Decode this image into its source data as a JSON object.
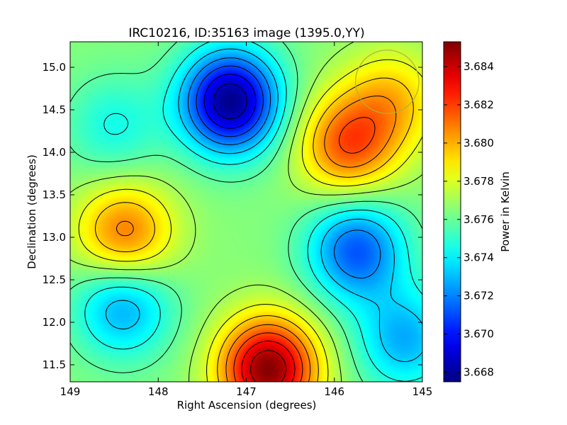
{
  "chart_data": {
    "type": "heatmap",
    "title": "IRC10216, ID:35163 image (1395.0,YY)",
    "xlabel": "Right Ascension (degrees)",
    "ylabel": "Declination (degrees)",
    "xlim": [
      149,
      145
    ],
    "ylim": [
      11.3,
      15.3
    ],
    "x_ticks": [
      149,
      148,
      147,
      146,
      145
    ],
    "x_tick_labels": [
      "149",
      "148",
      "147",
      "146",
      "145"
    ],
    "y_ticks": [
      11.5,
      12.0,
      12.5,
      13.0,
      13.5,
      14.0,
      14.5,
      15.0
    ],
    "y_tick_labels": [
      "11.5",
      "12.0",
      "12.5",
      "13.0",
      "13.5",
      "14.0",
      "14.5",
      "15.0"
    ],
    "colorbar": {
      "label": "Power in Kelvin",
      "range": [
        3.6675,
        3.6853
      ],
      "ticks": [
        3.668,
        3.67,
        3.672,
        3.674,
        3.676,
        3.678,
        3.68,
        3.682,
        3.684
      ],
      "tick_labels": [
        "3.668",
        "3.670",
        "3.672",
        "3.674",
        "3.676",
        "3.678",
        "3.680",
        "3.682",
        "3.684"
      ],
      "colormap": "jet"
    },
    "contours": {
      "color": "#000000",
      "levels": 14
    },
    "beam_circle": {
      "center_ra": 145.4,
      "center_dec": 14.83,
      "radius_deg": 0.36,
      "color": "#b5b032"
    },
    "field": {
      "baseline": 3.6765,
      "features": [
        {
          "kind": "minimum",
          "ra": 147.18,
          "dec": 14.6,
          "value": 3.6677
        },
        {
          "kind": "minimum",
          "ra": 145.75,
          "dec": 12.85,
          "value": 3.6712
        },
        {
          "kind": "minimum",
          "ra": 148.4,
          "dec": 12.2,
          "value": 3.6725
        },
        {
          "kind": "minimum",
          "ra": 145.2,
          "dec": 11.8,
          "value": 3.6728
        },
        {
          "kind": "minimum",
          "ra": 148.5,
          "dec": 14.3,
          "value": 3.6745
        },
        {
          "kind": "maximum",
          "ra": 146.75,
          "dec": 11.45,
          "value": 3.6852
        },
        {
          "kind": "maximum",
          "ra": 145.85,
          "dec": 14.08,
          "value": 3.6815
        },
        {
          "kind": "maximum",
          "ra": 148.38,
          "dec": 13.03,
          "value": 3.6812
        },
        {
          "kind": "maximum",
          "ra": 145.35,
          "dec": 14.6,
          "value": 3.6795
        }
      ]
    }
  }
}
